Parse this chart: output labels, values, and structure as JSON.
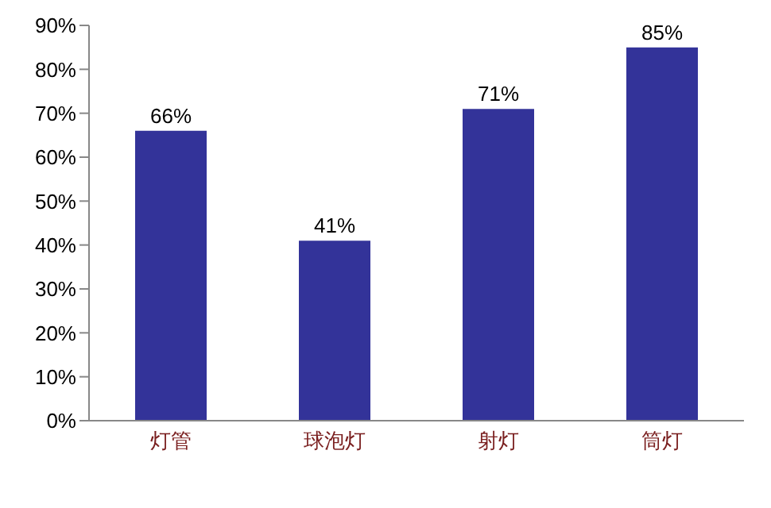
{
  "chart_data": {
    "type": "bar",
    "categories": [
      "灯管",
      "球泡灯",
      "射灯",
      "筒灯"
    ],
    "values": [
      66,
      41,
      71,
      85
    ],
    "value_labels": [
      "66%",
      "41%",
      "71%",
      "85%"
    ],
    "color": "#333399",
    "ylim": [
      0,
      90
    ],
    "yticks": [
      {
        "value": 0,
        "label": "0%"
      },
      {
        "value": 10,
        "label": "10%"
      },
      {
        "value": 20,
        "label": "20%"
      },
      {
        "value": 30,
        "label": "30%"
      },
      {
        "value": 40,
        "label": "40%"
      },
      {
        "value": 50,
        "label": "50%"
      },
      {
        "value": 60,
        "label": "60%"
      },
      {
        "value": 70,
        "label": "70%"
      },
      {
        "value": 80,
        "label": "80%"
      },
      {
        "value": 90,
        "label": "90%"
      }
    ],
    "grid": false,
    "legend": false
  }
}
